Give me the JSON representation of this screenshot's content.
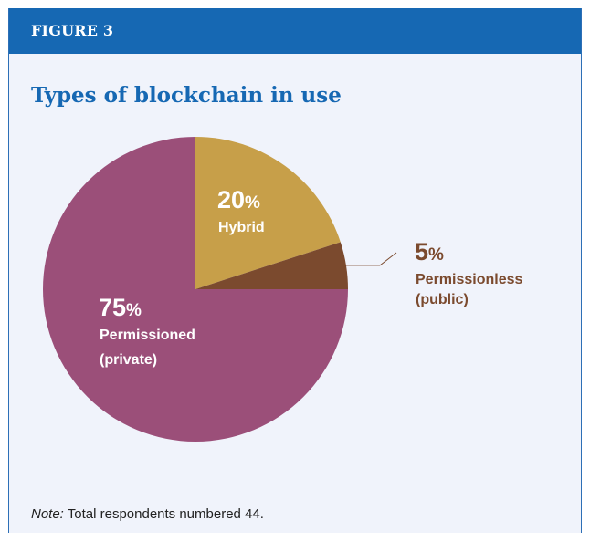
{
  "figure_label": "FIGURE 3",
  "colors": {
    "header_bg": "#1668b3",
    "title": "#1668b3",
    "panel_bg": "#f0f3fb",
    "leader_line": "#7b4a2e"
  },
  "note": {
    "label": "Note:",
    "text": "Total respondents numbered 44."
  },
  "chart_data": {
    "type": "pie",
    "title": "Types of blockchain in use",
    "unit": "%",
    "start_angle_deg": 0,
    "direction": "clockwise",
    "slices": [
      {
        "name": "Hybrid",
        "name_lines": [
          "Hybrid"
        ],
        "value": 20,
        "color": "#c79f49",
        "label_color": "#ffffff",
        "label_position": "inside"
      },
      {
        "name": "Permissionless (public)",
        "name_lines": [
          "Permissionless",
          "(public)"
        ],
        "value": 5,
        "color": "#7b4a2e",
        "label_color": "#7b4a2e",
        "label_position": "outside-right"
      },
      {
        "name": "Permissioned (private)",
        "name_lines": [
          "Permissioned",
          "(private)"
        ],
        "value": 75,
        "color": "#9b4f79",
        "label_color": "#ffffff",
        "label_position": "inside"
      }
    ]
  }
}
